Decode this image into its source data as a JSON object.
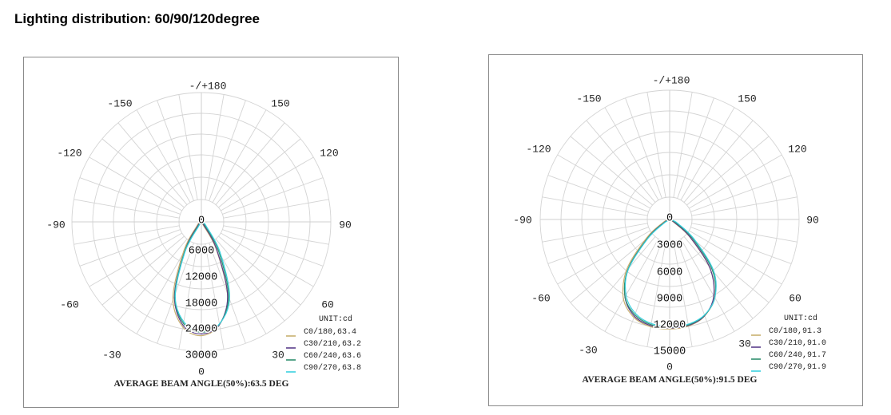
{
  "page": {
    "title": "Lighting distribution: 60/90/120degree"
  },
  "chart_data": [
    {
      "type": "polar",
      "unit_label": "UNIT:cd",
      "angle_labels": [
        "-/+180",
        "-150",
        "150",
        "-120",
        "120",
        "-90",
        "90",
        "-60",
        "60",
        "-30",
        "30",
        "0"
      ],
      "radial_ticks": [
        0,
        6000,
        12000,
        18000,
        24000,
        30000
      ],
      "rmax": 30000,
      "series": [
        {
          "name": "C0/180,63.4",
          "color": "#c8b070",
          "points": [
            [
              0,
              26400
            ],
            [
              10,
              24500
            ],
            [
              20,
              18500
            ],
            [
              30,
              7500
            ],
            [
              40,
              1200
            ],
            [
              50,
              200
            ],
            [
              60,
              0
            ]
          ]
        },
        {
          "name": "C30/210,63.2",
          "color": "#5a3d8a",
          "points": [
            [
              0,
              26000
            ],
            [
              10,
              24300
            ],
            [
              20,
              18000
            ],
            [
              30,
              7000
            ],
            [
              40,
              1000
            ],
            [
              50,
              200
            ],
            [
              60,
              0
            ]
          ]
        },
        {
          "name": "C60/240,63.6",
          "color": "#2f8f6e",
          "points": [
            [
              0,
              25600
            ],
            [
              10,
              24000
            ],
            [
              20,
              18200
            ],
            [
              30,
              7800
            ],
            [
              40,
              1300
            ],
            [
              50,
              200
            ],
            [
              60,
              0
            ]
          ]
        },
        {
          "name": "C90/270,63.8",
          "color": "#3ad0e0",
          "points": [
            [
              0,
              25200
            ],
            [
              10,
              23800
            ],
            [
              20,
              18400
            ],
            [
              30,
              8200
            ],
            [
              40,
              1500
            ],
            [
              50,
              200
            ],
            [
              60,
              0
            ]
          ]
        }
      ],
      "footer": "AVERAGE BEAM ANGLE(50%):63.5 DEG"
    },
    {
      "type": "polar",
      "unit_label": "UNIT:cd",
      "angle_labels": [
        "-/+180",
        "-150",
        "150",
        "-120",
        "120",
        "-90",
        "90",
        "-60",
        "60",
        "-30",
        "30",
        "0"
      ],
      "radial_ticks": [
        0,
        3000,
        6000,
        9000,
        12000,
        15000
      ],
      "rmax": 15000,
      "series": [
        {
          "name": "C0/180,91.3",
          "color": "#c8b070",
          "points": [
            [
              0,
              12700
            ],
            [
              10,
              12600
            ],
            [
              20,
              12000
            ],
            [
              30,
              10500
            ],
            [
              40,
              7500
            ],
            [
              50,
              3300
            ],
            [
              60,
              800
            ],
            [
              70,
              100
            ],
            [
              80,
              0
            ]
          ]
        },
        {
          "name": "C30/210,91.0",
          "color": "#5a3d8a",
          "points": [
            [
              0,
              12600
            ],
            [
              10,
              12500
            ],
            [
              20,
              11900
            ],
            [
              30,
              10300
            ],
            [
              40,
              7300
            ],
            [
              50,
              3100
            ],
            [
              60,
              700
            ],
            [
              70,
              100
            ],
            [
              80,
              0
            ]
          ]
        },
        {
          "name": "C60/240,91.7",
          "color": "#2f8f6e",
          "points": [
            [
              0,
              12500
            ],
            [
              10,
              12400
            ],
            [
              20,
              11800
            ],
            [
              30,
              10400
            ],
            [
              40,
              7600
            ],
            [
              50,
              3400
            ],
            [
              60,
              900
            ],
            [
              70,
              100
            ],
            [
              80,
              0
            ]
          ]
        },
        {
          "name": "C90/270,91.9",
          "color": "#3ad0e0",
          "points": [
            [
              0,
              12400
            ],
            [
              10,
              12300
            ],
            [
              20,
              11700
            ],
            [
              30,
              10300
            ],
            [
              40,
              7700
            ],
            [
              50,
              3500
            ],
            [
              60,
              1000
            ],
            [
              70,
              150
            ],
            [
              80,
              0
            ]
          ]
        }
      ],
      "footer": "AVERAGE BEAM ANGLE(50%):91.5 DEG"
    }
  ]
}
